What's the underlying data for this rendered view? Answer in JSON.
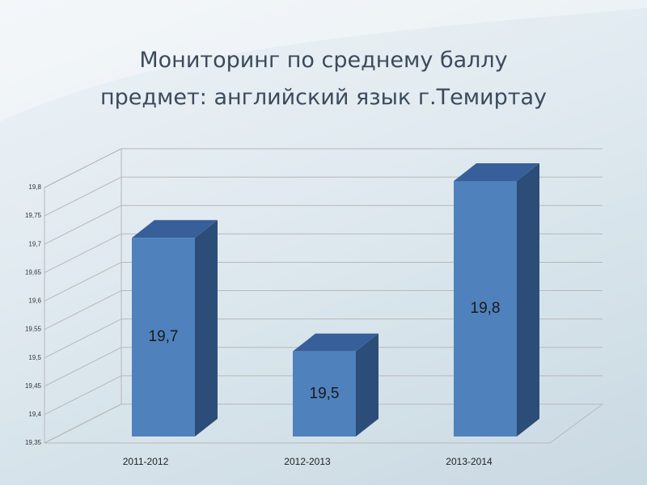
{
  "chart_data": {
    "type": "bar3d",
    "title": "Мониторинг по среднему баллу\nпредмет: английский язык г.Темиртау",
    "categories": [
      "2011-2012",
      "2012-2013",
      "2013-2014"
    ],
    "values": [
      19.7,
      19.5,
      19.8
    ],
    "value_labels": [
      "19,7",
      "19,5",
      "19,8"
    ],
    "color": "#4f81bd",
    "ylim": [
      19.35,
      19.8
    ],
    "yticks": [
      {
        "value": 19.35,
        "label": "19,35"
      },
      {
        "value": 19.4,
        "label": "19,4"
      },
      {
        "value": 19.45,
        "label": "19,45"
      },
      {
        "value": 19.5,
        "label": "19,5"
      },
      {
        "value": 19.55,
        "label": "19,55"
      },
      {
        "value": 19.6,
        "label": "19,6"
      },
      {
        "value": 19.65,
        "label": "19,65"
      },
      {
        "value": 19.7,
        "label": "19,7"
      },
      {
        "value": 19.75,
        "label": "19,75"
      },
      {
        "value": 19.8,
        "label": "19,8"
      }
    ],
    "grid": true
  }
}
